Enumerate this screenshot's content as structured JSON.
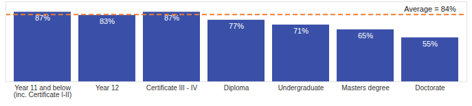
{
  "chart_data": {
    "type": "bar",
    "categories": [
      "Year 11 and below\n(inc. Certificate I-II)",
      "Year 12",
      "Certificate III - IV",
      "Diploma",
      "Undergraduate",
      "Masters degree",
      "Doctorate"
    ],
    "values": [
      87,
      83,
      87,
      77,
      71,
      65,
      55
    ],
    "value_labels": [
      "87%",
      "83%",
      "87%",
      "77%",
      "71%",
      "65%",
      "55%"
    ],
    "color": "#3a50a8",
    "ylim": [
      0,
      100
    ],
    "data_labels": true,
    "tick_labels": "x",
    "grid": false,
    "annotations": [
      {
        "text": "Average = 84%",
        "y": 84,
        "color": "#ed7d31"
      }
    ]
  }
}
